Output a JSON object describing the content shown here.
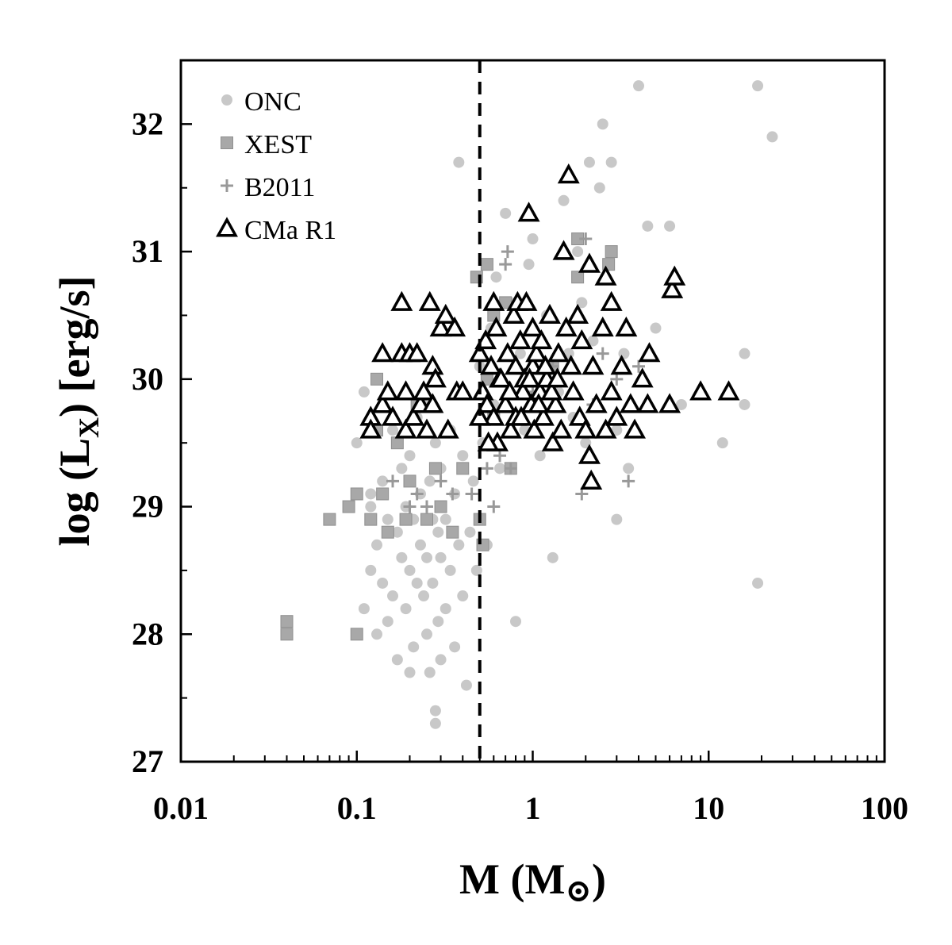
{
  "chart_data": {
    "type": "scatter",
    "title": "",
    "xlabel": "M (M",
    "xlabel_symbol": "⊙",
    "xlabel_close": ")",
    "ylabel": "log (L",
    "ylabel_sub": "X",
    "ylabel_rest": ") [erg/s]",
    "x_scale": "log",
    "xlim": [
      0.01,
      100
    ],
    "ylim": [
      27,
      32.5
    ],
    "x_ticks": [
      0.01,
      0.1,
      1,
      10,
      100
    ],
    "x_tick_labels": [
      "0.01",
      "0.1",
      "1",
      "10",
      "100"
    ],
    "y_ticks": [
      27,
      28,
      29,
      30,
      31,
      32
    ],
    "y_tick_labels": [
      "27",
      "28",
      "29",
      "30",
      "31",
      "32"
    ],
    "grid": false,
    "legend_position": "top-left",
    "reference_line": {
      "x": 0.5,
      "style": "dashed"
    },
    "series": [
      {
        "name": "ONC",
        "marker": "circle",
        "color": "#c8c8c8",
        "points": [
          [
            0.1,
            29.5
          ],
          [
            0.11,
            28.2
          ],
          [
            0.12,
            28.5
          ],
          [
            0.12,
            29.1
          ],
          [
            0.13,
            28.7
          ],
          [
            0.13,
            28.0
          ],
          [
            0.14,
            29.2
          ],
          [
            0.14,
            28.4
          ],
          [
            0.15,
            28.9
          ],
          [
            0.15,
            28.1
          ],
          [
            0.16,
            29.6
          ],
          [
            0.16,
            28.3
          ],
          [
            0.17,
            28.8
          ],
          [
            0.17,
            27.8
          ],
          [
            0.18,
            29.3
          ],
          [
            0.18,
            28.6
          ],
          [
            0.19,
            29.0
          ],
          [
            0.19,
            28.2
          ],
          [
            0.2,
            29.4
          ],
          [
            0.2,
            28.5
          ],
          [
            0.21,
            28.9
          ],
          [
            0.21,
            27.9
          ],
          [
            0.22,
            29.7
          ],
          [
            0.22,
            28.4
          ],
          [
            0.23,
            29.1
          ],
          [
            0.23,
            28.7
          ],
          [
            0.24,
            28.3
          ],
          [
            0.24,
            29.8
          ],
          [
            0.25,
            28.6
          ],
          [
            0.25,
            28.0
          ],
          [
            0.26,
            29.2
          ],
          [
            0.26,
            27.7
          ],
          [
            0.27,
            28.9
          ],
          [
            0.27,
            28.4
          ],
          [
            0.28,
            29.5
          ],
          [
            0.28,
            27.3
          ],
          [
            0.29,
            28.8
          ],
          [
            0.29,
            28.1
          ],
          [
            0.3,
            29.3
          ],
          [
            0.3,
            28.6
          ],
          [
            0.32,
            28.9
          ],
          [
            0.32,
            28.2
          ],
          [
            0.34,
            29.6
          ],
          [
            0.34,
            28.5
          ],
          [
            0.36,
            29.1
          ],
          [
            0.36,
            27.9
          ],
          [
            0.38,
            28.7
          ],
          [
            0.4,
            29.4
          ],
          [
            0.4,
            28.3
          ],
          [
            0.42,
            27.6
          ],
          [
            0.44,
            28.8
          ],
          [
            0.46,
            29.2
          ],
          [
            0.48,
            28.5
          ],
          [
            0.5,
            30.1
          ],
          [
            0.52,
            29.5
          ],
          [
            0.55,
            28.7
          ],
          [
            0.58,
            30.4
          ],
          [
            0.6,
            29.8
          ],
          [
            0.62,
            30.8
          ],
          [
            0.65,
            29.3
          ],
          [
            0.7,
            31.3
          ],
          [
            0.75,
            30.6
          ],
          [
            0.8,
            28.1
          ],
          [
            0.85,
            30.2
          ],
          [
            0.9,
            29.6
          ],
          [
            0.95,
            30.9
          ],
          [
            1.0,
            31.1
          ],
          [
            1.1,
            29.4
          ],
          [
            1.2,
            30.5
          ],
          [
            1.3,
            28.6
          ],
          [
            1.4,
            29.9
          ],
          [
            1.5,
            31.4
          ],
          [
            1.6,
            30.2
          ],
          [
            1.7,
            29.7
          ],
          [
            1.8,
            31.0
          ],
          [
            1.9,
            30.6
          ],
          [
            2.0,
            29.5
          ],
          [
            2.1,
            31.7
          ],
          [
            2.2,
            30.3
          ],
          [
            2.4,
            31.5
          ],
          [
            2.5,
            32.0
          ],
          [
            2.6,
            30.8
          ],
          [
            2.8,
            31.7
          ],
          [
            3.0,
            28.9
          ],
          [
            3.0,
            29.6
          ],
          [
            3.3,
            30.2
          ],
          [
            3.5,
            29.3
          ],
          [
            4.0,
            32.3
          ],
          [
            4.5,
            31.2
          ],
          [
            5.0,
            30.4
          ],
          [
            6.0,
            31.2
          ],
          [
            7.0,
            29.8
          ],
          [
            12.0,
            29.5
          ],
          [
            16.0,
            30.2
          ],
          [
            16.0,
            29.8
          ],
          [
            19.0,
            28.4
          ],
          [
            19.0,
            32.3
          ],
          [
            23.0,
            31.9
          ],
          [
            0.38,
            31.7
          ],
          [
            0.11,
            29.9
          ],
          [
            0.12,
            29.0
          ],
          [
            0.2,
            27.7
          ],
          [
            0.28,
            27.4
          ],
          [
            0.3,
            27.8
          ]
        ]
      },
      {
        "name": "XEST",
        "marker": "square",
        "color": "#a8a8a8",
        "points": [
          [
            0.04,
            28.1
          ],
          [
            0.04,
            28.0
          ],
          [
            0.07,
            28.9
          ],
          [
            0.09,
            29.0
          ],
          [
            0.1,
            29.1
          ],
          [
            0.1,
            28.0
          ],
          [
            0.12,
            28.9
          ],
          [
            0.13,
            30.0
          ],
          [
            0.13,
            29.6
          ],
          [
            0.14,
            29.1
          ],
          [
            0.15,
            28.8
          ],
          [
            0.17,
            29.5
          ],
          [
            0.19,
            28.9
          ],
          [
            0.2,
            29.2
          ],
          [
            0.22,
            29.8
          ],
          [
            0.25,
            28.9
          ],
          [
            0.28,
            29.3
          ],
          [
            0.3,
            29.0
          ],
          [
            0.35,
            28.8
          ],
          [
            0.4,
            29.3
          ],
          [
            0.48,
            30.8
          ],
          [
            0.5,
            28.9
          ],
          [
            0.52,
            28.7
          ],
          [
            0.55,
            30.9
          ],
          [
            0.6,
            30.5
          ],
          [
            0.6,
            29.7
          ],
          [
            0.7,
            30.6
          ],
          [
            0.75,
            29.3
          ],
          [
            1.3,
            30.1
          ],
          [
            1.8,
            30.8
          ],
          [
            1.8,
            31.1
          ],
          [
            2.7,
            30.9
          ],
          [
            2.8,
            31.0
          ],
          [
            0.55,
            30.0
          ]
        ]
      },
      {
        "name": "B2011",
        "marker": "plus",
        "color": "#999999",
        "points": [
          [
            0.16,
            29.2
          ],
          [
            0.2,
            29.0
          ],
          [
            0.22,
            29.1
          ],
          [
            0.25,
            29.0
          ],
          [
            0.3,
            29.2
          ],
          [
            0.35,
            29.1
          ],
          [
            0.45,
            29.1
          ],
          [
            0.55,
            29.3
          ],
          [
            0.6,
            29.0
          ],
          [
            0.65,
            29.4
          ],
          [
            0.7,
            30.9
          ],
          [
            0.72,
            31.0
          ],
          [
            0.75,
            29.3
          ],
          [
            1.0,
            29.9
          ],
          [
            1.3,
            30.1
          ],
          [
            1.9,
            29.1
          ],
          [
            2.0,
            31.1
          ],
          [
            2.2,
            29.8
          ],
          [
            2.5,
            30.2
          ],
          [
            3.0,
            30.0
          ],
          [
            3.5,
            29.2
          ],
          [
            4.0,
            30.1
          ]
        ]
      },
      {
        "name": "CMa R1",
        "marker": "triangle",
        "color": "#000000",
        "points": [
          [
            0.12,
            29.7
          ],
          [
            0.12,
            29.6
          ],
          [
            0.14,
            30.2
          ],
          [
            0.14,
            29.8
          ],
          [
            0.15,
            29.9
          ],
          [
            0.16,
            29.7
          ],
          [
            0.18,
            30.6
          ],
          [
            0.18,
            30.2
          ],
          [
            0.19,
            29.9
          ],
          [
            0.19,
            29.6
          ],
          [
            0.2,
            30.2
          ],
          [
            0.21,
            29.7
          ],
          [
            0.22,
            30.2
          ],
          [
            0.23,
            29.8
          ],
          [
            0.24,
            29.9
          ],
          [
            0.25,
            29.6
          ],
          [
            0.26,
            30.6
          ],
          [
            0.27,
            30.1
          ],
          [
            0.27,
            29.8
          ],
          [
            0.28,
            30.0
          ],
          [
            0.3,
            30.4
          ],
          [
            0.32,
            30.5
          ],
          [
            0.33,
            29.6
          ],
          [
            0.36,
            30.4
          ],
          [
            0.37,
            29.9
          ],
          [
            0.4,
            29.9
          ],
          [
            0.5,
            30.2
          ],
          [
            0.52,
            29.9
          ],
          [
            0.54,
            30.3
          ],
          [
            0.55,
            29.8
          ],
          [
            0.58,
            30.1
          ],
          [
            0.6,
            30.6
          ],
          [
            0.6,
            29.7
          ],
          [
            0.62,
            30.4
          ],
          [
            0.63,
            29.5
          ],
          [
            0.65,
            30.0
          ],
          [
            0.7,
            29.8
          ],
          [
            0.72,
            30.2
          ],
          [
            0.75,
            29.6
          ],
          [
            0.78,
            30.5
          ],
          [
            0.8,
            30.1
          ],
          [
            0.8,
            29.7
          ],
          [
            0.82,
            30.6
          ],
          [
            0.85,
            30.3
          ],
          [
            0.88,
            29.9
          ],
          [
            0.9,
            30.0
          ],
          [
            0.92,
            30.6
          ],
          [
            0.95,
            31.3
          ],
          [
            0.98,
            29.8
          ],
          [
            1.0,
            30.4
          ],
          [
            1.0,
            30.1
          ],
          [
            1.02,
            29.6
          ],
          [
            1.05,
            30.2
          ],
          [
            1.1,
            29.9
          ],
          [
            1.12,
            30.3
          ],
          [
            1.15,
            29.7
          ],
          [
            1.2,
            30.0
          ],
          [
            1.25,
            30.5
          ],
          [
            1.3,
            29.5
          ],
          [
            1.35,
            29.8
          ],
          [
            1.4,
            30.2
          ],
          [
            1.45,
            29.6
          ],
          [
            1.5,
            31.0
          ],
          [
            1.55,
            30.4
          ],
          [
            1.6,
            31.6
          ],
          [
            1.65,
            30.1
          ],
          [
            1.7,
            29.9
          ],
          [
            1.8,
            30.5
          ],
          [
            1.85,
            29.7
          ],
          [
            1.9,
            30.3
          ],
          [
            2.0,
            29.6
          ],
          [
            2.1,
            30.9
          ],
          [
            2.1,
            29.4
          ],
          [
            2.15,
            29.2
          ],
          [
            2.2,
            30.1
          ],
          [
            2.3,
            29.8
          ],
          [
            2.5,
            30.4
          ],
          [
            2.6,
            30.8
          ],
          [
            2.6,
            29.6
          ],
          [
            2.8,
            30.6
          ],
          [
            2.8,
            29.9
          ],
          [
            3.0,
            29.7
          ],
          [
            3.2,
            30.1
          ],
          [
            3.4,
            30.4
          ],
          [
            3.6,
            29.8
          ],
          [
            3.8,
            29.6
          ],
          [
            4.2,
            30.0
          ],
          [
            4.5,
            29.8
          ],
          [
            4.6,
            30.2
          ],
          [
            6.2,
            30.7
          ],
          [
            6.4,
            30.8
          ],
          [
            6.0,
            29.8
          ],
          [
            9.0,
            29.9
          ],
          [
            13.0,
            29.9
          ],
          [
            0.5,
            29.7
          ],
          [
            0.56,
            29.5
          ],
          [
            0.66,
            30.0
          ],
          [
            0.74,
            29.9
          ],
          [
            0.86,
            29.7
          ],
          [
            0.96,
            30.0
          ],
          [
            1.08,
            29.8
          ],
          [
            1.18,
            30.1
          ],
          [
            1.28,
            29.9
          ],
          [
            1.38,
            30.0
          ]
        ]
      }
    ]
  }
}
